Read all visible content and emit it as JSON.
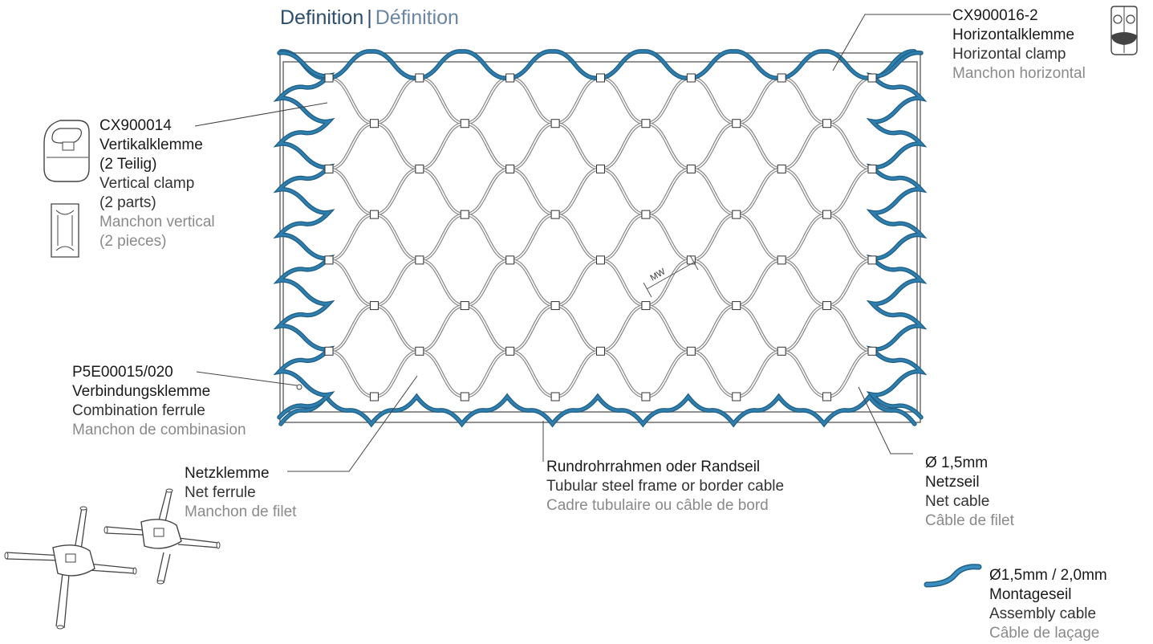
{
  "title": {
    "de": "Definition",
    "separator": "|",
    "fr": "Définition"
  },
  "labels": {
    "horizontal_clamp": {
      "code": "CX900016-2",
      "de": "Horizontalklemme",
      "en": "Horizontal clamp",
      "fr": "Manchon horizontal"
    },
    "vertical_clamp": {
      "code": "CX900014",
      "de": "Vertikalklemme",
      "de2": "(2 Teilig)",
      "en": "Vertical clamp",
      "en2": "(2 parts)",
      "fr": "Manchon vertical",
      "fr2": "(2 pieces)"
    },
    "combination_ferrule": {
      "code": "P5E00015/020",
      "de": "Verbindungsklemme",
      "en": "Combination ferrule",
      "fr": "Manchon de combinasion"
    },
    "net_ferrule": {
      "de": "Netzklemme",
      "en": "Net ferrule",
      "fr": "Manchon de filet"
    },
    "frame": {
      "de": "Rundrohrrahmen oder Randseil",
      "en": "Tubular steel frame or border cable",
      "fr": "Cadre tubulaire ou câble de bord"
    },
    "net_cable": {
      "size": "Ø 1,5mm",
      "de": "Netzseil",
      "en": "Net cable",
      "fr": "Câble de filet"
    },
    "assembly_cable": {
      "size": "Ø1,5mm / 2,0mm",
      "de": "Montageseil",
      "en": "Assembly cable",
      "fr": "Câble de laçage"
    }
  },
  "mesh_width_label": "MW",
  "colors": {
    "assembly_cable": "#2f7fae",
    "net_cable": "#888888",
    "frame": "#6e6e6e",
    "title_dark": "#2e4e6e",
    "title_light": "#6b86a3"
  }
}
